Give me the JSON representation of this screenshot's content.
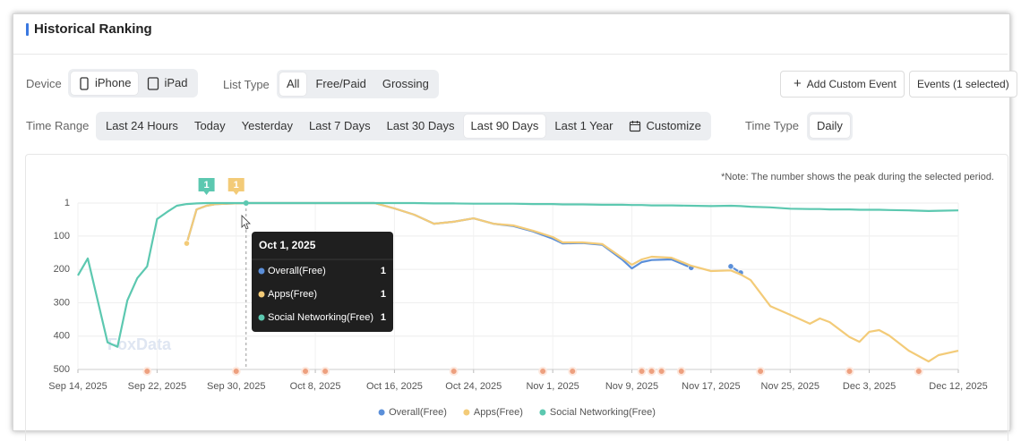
{
  "header": {
    "title": "Historical Ranking"
  },
  "filters": {
    "device": {
      "label": "Device",
      "options": [
        "iPhone",
        "iPad"
      ],
      "selected": 0
    },
    "list_type": {
      "label": "List Type",
      "options": [
        "All",
        "Free/Paid",
        "Grossing"
      ],
      "selected": 0
    },
    "time_range": {
      "label": "Time Range",
      "options": [
        "Last 24 Hours",
        "Today",
        "Yesterday",
        "Last 7 Days",
        "Last 30 Days",
        "Last 90 Days",
        "Last 1 Year",
        "Customize"
      ],
      "selected": 5
    },
    "time_type": {
      "label": "Time Type",
      "options": [
        "Daily"
      ],
      "selected": 0
    }
  },
  "actions": [
    "Add Custom Event",
    "Events (1 selected)"
  ],
  "chart_data": {
    "type": "line",
    "note": "*Note: The number shows the peak during the selected period.",
    "watermark": "FoxData",
    "x": [
      "Sep 14, 2025",
      "Sep 15, 2025",
      "Sep 17, 2025",
      "Sep 18, 2025",
      "Sep 19, 2025",
      "Sep 20, 2025",
      "Sep 21, 2025",
      "Sep 22, 2025",
      "Sep 23, 2025",
      "Sep 24, 2025",
      "Sep 25, 2025",
      "Sep 26, 2025",
      "Sep 27, 2025",
      "Sep 28, 2025",
      "Oct 1, 2025",
      "Oct 8, 2025",
      "Oct 14, 2025",
      "Oct 16, 2025",
      "Oct 18, 2025",
      "Oct 20, 2025",
      "Oct 22, 2025",
      "Oct 24, 2025",
      "Oct 26, 2025",
      "Oct 28, 2025",
      "Oct 30, 2025",
      "Nov 1, 2025",
      "Nov 2, 2025",
      "Nov 4, 2025",
      "Nov 6, 2025",
      "Nov 8, 2025",
      "Nov 9, 2025",
      "Nov 10, 2025",
      "Nov 11, 2025",
      "Nov 13, 2025",
      "Nov 15, 2025",
      "Nov 17, 2025",
      "Nov 19, 2025",
      "Nov 20, 2025",
      "Nov 21, 2025",
      "Nov 23, 2025",
      "Nov 25, 2025",
      "Nov 27, 2025",
      "Nov 28, 2025",
      "Nov 29, 2025",
      "Dec 1, 2025",
      "Dec 2, 2025",
      "Dec 3, 2025",
      "Dec 4, 2025",
      "Dec 5, 2025",
      "Dec 7, 2025",
      "Dec 9, 2025",
      "Dec 10, 2025",
      "Dec 12, 2025"
    ],
    "series": [
      {
        "name": "Overall(Free)",
        "color": "#5b8fd9",
        "values": [
          null,
          null,
          null,
          null,
          null,
          null,
          null,
          null,
          null,
          null,
          122,
          20,
          9,
          4,
          1,
          1,
          1,
          17,
          36,
          63,
          57,
          47,
          63,
          70,
          86,
          108,
          122,
          121,
          126,
          170,
          197,
          178,
          172,
          170,
          195,
          null,
          191,
          210,
          null,
          null,
          null,
          null,
          null,
          null,
          null,
          null,
          null,
          null,
          null,
          null,
          null,
          null,
          null
        ]
      },
      {
        "name": "Apps(Free)",
        "color": "#f3cb78",
        "peak": {
          "x": "Sep 30, 2025",
          "value": 1
        },
        "values": [
          null,
          null,
          null,
          null,
          null,
          null,
          null,
          null,
          null,
          null,
          122,
          20,
          9,
          4,
          1,
          1,
          1,
          17,
          36,
          63,
          57,
          47,
          63,
          68,
          84,
          103,
          119,
          119,
          124,
          165,
          186,
          170,
          162,
          165,
          189,
          205,
          203,
          215,
          232,
          310,
          336,
          363,
          347,
          358,
          403,
          417,
          387,
          382,
          398,
          444,
          476,
          457,
          444
        ]
      },
      {
        "name": "Social Networking(Free)",
        "color": "#5cc8b0",
        "peak": {
          "x": "Sep 27, 2025",
          "value": 1
        },
        "values": [
          218,
          167,
          419,
          432,
          293,
          226,
          191,
          49,
          28,
          9,
          4,
          2,
          1,
          1,
          1,
          1,
          1,
          1,
          1,
          2,
          2,
          3,
          3,
          3,
          4,
          4,
          5,
          5,
          6,
          6,
          7,
          7,
          8,
          8,
          9,
          10,
          9,
          10,
          12,
          14,
          18,
          19,
          19,
          20,
          20,
          21,
          21,
          21,
          22,
          23,
          25,
          24,
          23
        ]
      }
    ],
    "xlim": [
      "Sep 14, 2025",
      "Dec 12, 2025"
    ],
    "xticks": [
      "Sep 14, 2025",
      "Sep 22, 2025",
      "Sep 30, 2025",
      "Oct 8, 2025",
      "Oct 16, 2025",
      "Oct 24, 2025",
      "Nov 1, 2025",
      "Nov 9, 2025",
      "Nov 17, 2025",
      "Nov 25, 2025",
      "Dec 3, 2025",
      "Dec 12, 2025"
    ],
    "ylim": [
      1,
      500
    ],
    "y_reversed": true,
    "yticks": [
      1,
      100,
      200,
      300,
      400,
      500
    ],
    "grid": true,
    "events": [
      "Sep 21, 2025",
      "Sep 30, 2025",
      "Oct 7, 2025",
      "Oct 9, 2025",
      "Oct 22, 2025",
      "Oct 31, 2025",
      "Nov 3, 2025",
      "Nov 10, 2025",
      "Nov 11, 2025",
      "Nov 12, 2025",
      "Nov 14, 2025",
      "Nov 22, 2025",
      "Dec 1, 2025",
      "Dec 8, 2025"
    ],
    "tooltip": {
      "date": "Oct 1, 2025"
    },
    "legend": "bottom"
  }
}
